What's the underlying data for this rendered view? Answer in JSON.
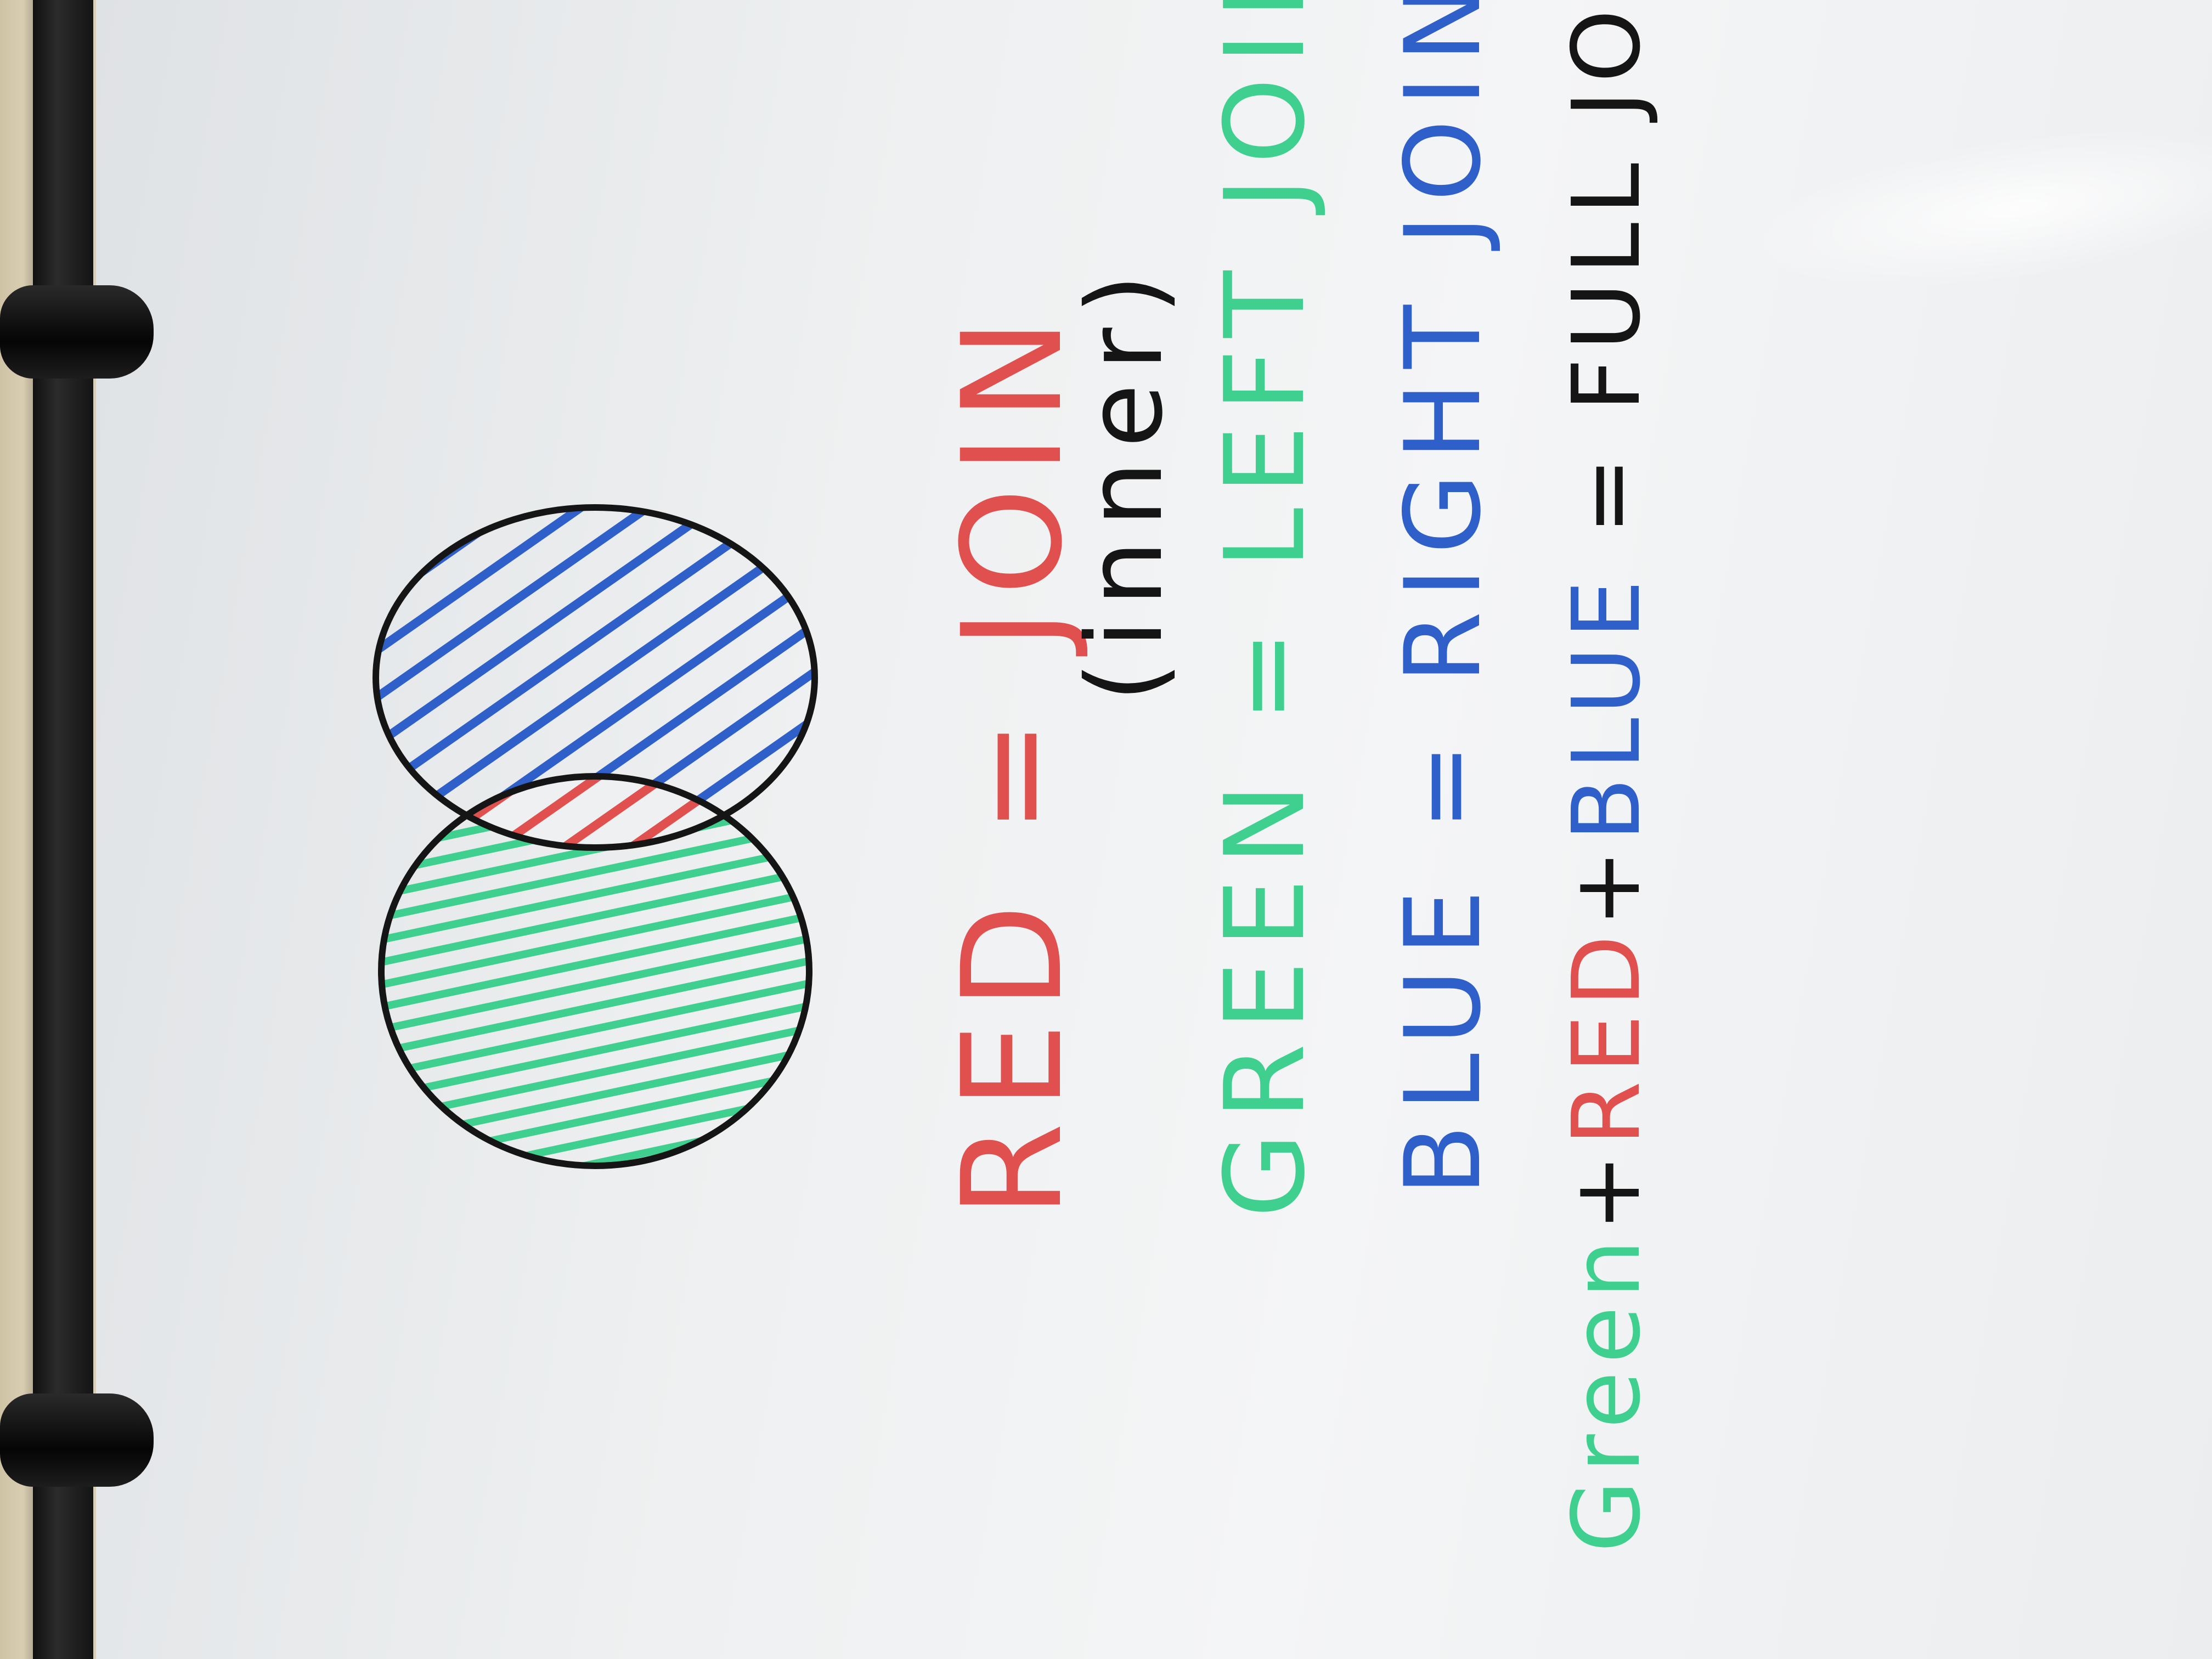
{
  "whiteboard": {
    "lines": [
      {
        "id": "red",
        "parts": [
          {
            "text": "RED = JOIN",
            "color": "#e0504f"
          }
        ]
      },
      {
        "id": "inner",
        "parts": [
          {
            "text": "(inner)",
            "color": "#151515"
          }
        ]
      },
      {
        "id": "green",
        "parts": [
          {
            "text": "GREEN = LEFT JOIN",
            "color": "#3fcf8e"
          }
        ]
      },
      {
        "id": "blue",
        "parts": [
          {
            "text": "BLUE = RIGHT JOIN",
            "color": "#2f5fc9"
          }
        ]
      },
      {
        "id": "full",
        "parts": [
          {
            "text": "Green",
            "color": "#3fcf8e"
          },
          {
            "text": "+",
            "color": "#151515"
          },
          {
            "text": "RED",
            "color": "#e0504f"
          },
          {
            "text": "+",
            "color": "#151515"
          },
          {
            "text": "BLUE",
            "color": "#2f5fc9"
          },
          {
            "text": " = FULL JOIN",
            "color": "#151515"
          }
        ]
      }
    ],
    "venn": {
      "top_circle_fill": "blue-hatched",
      "overlap_fill": "red-hatched",
      "bottom_circle_fill": "green-hatched",
      "colors": {
        "blue": "#2f5fc9",
        "red": "#e0504f",
        "green": "#3fcf8e",
        "outline": "#151515"
      }
    }
  }
}
